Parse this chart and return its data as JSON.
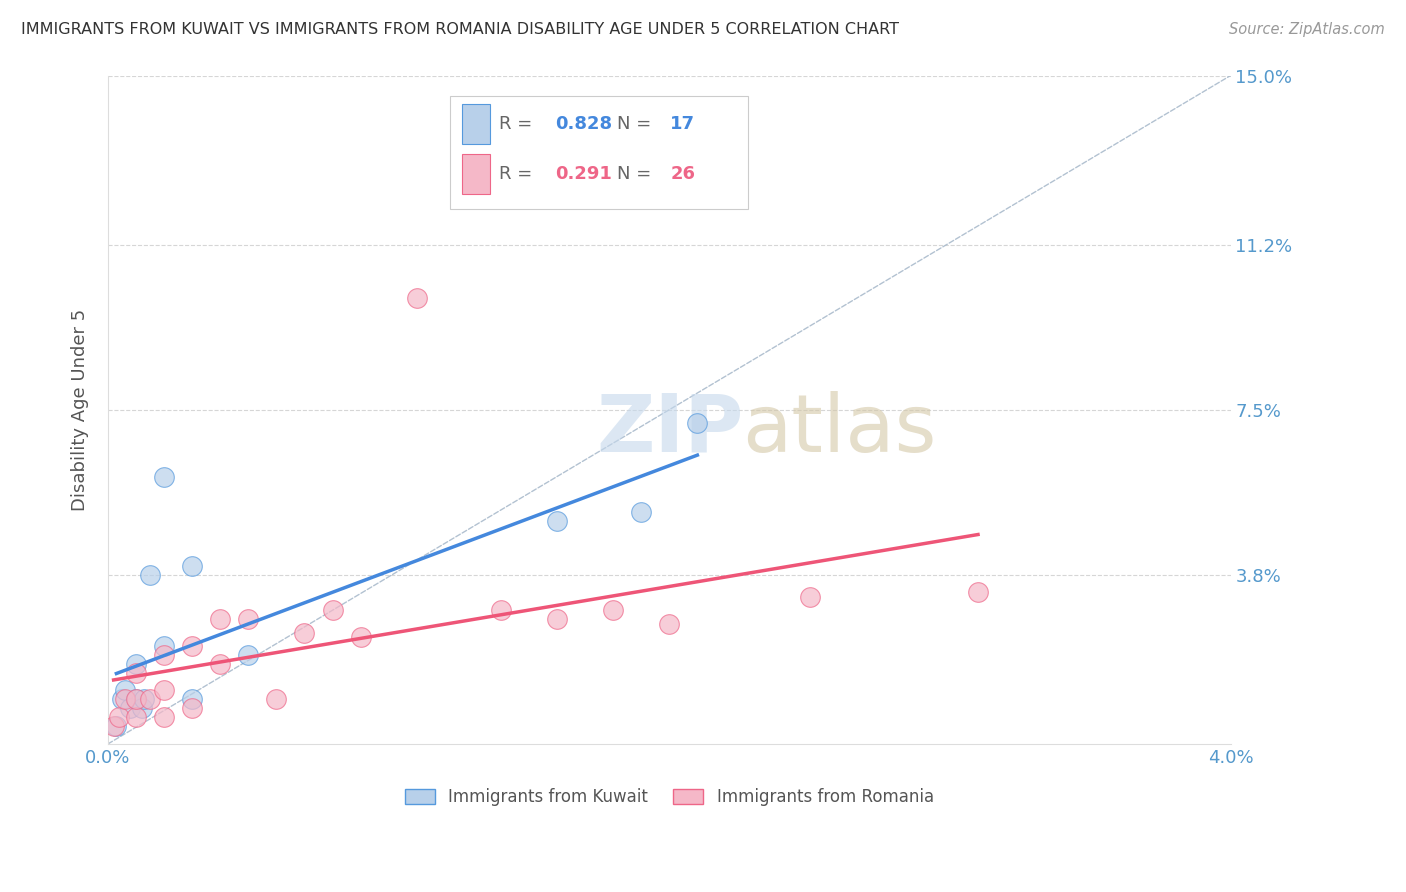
{
  "title": "IMMIGRANTS FROM KUWAIT VS IMMIGRANTS FROM ROMANIA DISABILITY AGE UNDER 5 CORRELATION CHART",
  "source": "Source: ZipAtlas.com",
  "ylabel": "Disability Age Under 5",
  "xlim": [
    0.0,
    0.04
  ],
  "ylim": [
    0.0,
    0.15
  ],
  "xticks": [
    0.0,
    0.01,
    0.02,
    0.03,
    0.04
  ],
  "xticklabels": [
    "0.0%",
    "",
    "",
    "",
    "4.0%"
  ],
  "yticks_right": [
    0.0,
    0.038,
    0.075,
    0.112,
    0.15
  ],
  "yticklabels_right": [
    "",
    "3.8%",
    "7.5%",
    "11.2%",
    "15.0%"
  ],
  "kuwait_R": "0.828",
  "kuwait_N": "17",
  "romania_R": "0.291",
  "romania_N": "26",
  "kuwait_fill_color": "#b8d0ea",
  "romania_fill_color": "#f5b8c8",
  "kuwait_edge_color": "#5599dd",
  "romania_edge_color": "#ee6688",
  "kuwait_line_color": "#4488dd",
  "romania_line_color": "#ee5577",
  "diagonal_color": "#aabbcc",
  "background_color": "#ffffff",
  "grid_color": "#cccccc",
  "title_color": "#333333",
  "axis_label_color": "#555555",
  "tick_label_color": "#5599cc",
  "legend_label_color": "#666666",
  "kuwait_points_x": [
    0.0003,
    0.0005,
    0.0006,
    0.0008,
    0.001,
    0.001,
    0.0012,
    0.0013,
    0.0015,
    0.002,
    0.002,
    0.003,
    0.003,
    0.005,
    0.016,
    0.019,
    0.021
  ],
  "kuwait_points_y": [
    0.004,
    0.01,
    0.012,
    0.008,
    0.01,
    0.018,
    0.008,
    0.01,
    0.038,
    0.022,
    0.06,
    0.01,
    0.04,
    0.02,
    0.05,
    0.052,
    0.072
  ],
  "romania_points_x": [
    0.0002,
    0.0004,
    0.0006,
    0.001,
    0.001,
    0.001,
    0.0015,
    0.002,
    0.002,
    0.002,
    0.003,
    0.003,
    0.004,
    0.004,
    0.005,
    0.006,
    0.007,
    0.008,
    0.009,
    0.011,
    0.014,
    0.016,
    0.018,
    0.02,
    0.025,
    0.031
  ],
  "romania_points_y": [
    0.004,
    0.006,
    0.01,
    0.006,
    0.01,
    0.016,
    0.01,
    0.006,
    0.012,
    0.02,
    0.008,
    0.022,
    0.018,
    0.028,
    0.028,
    0.01,
    0.025,
    0.03,
    0.024,
    0.1,
    0.03,
    0.028,
    0.03,
    0.027,
    0.033,
    0.034
  ],
  "watermark_zip_color": "#c5d8ec",
  "watermark_atlas_color": "#d4c8a8"
}
